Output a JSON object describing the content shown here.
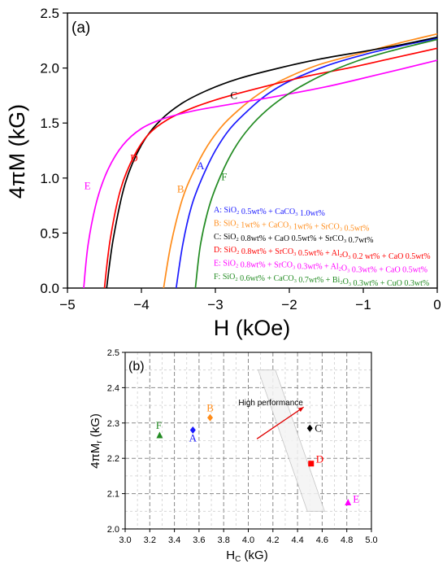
{
  "chart_data": [
    {
      "type": "line",
      "panel_label": "(a)",
      "xlabel": "H (kOe)",
      "ylabel": "4πM (kG)",
      "xlim": [
        -5,
        0
      ],
      "ylim": [
        0,
        2.5
      ],
      "xticks": [
        -5,
        -4,
        -3,
        -2,
        -1,
        0
      ],
      "yticks": [
        0.0,
        0.5,
        1.0,
        1.5,
        2.0,
        2.5
      ],
      "xtick_labels": [
        "−5",
        "−4",
        "−3",
        "−2",
        "−1",
        "0"
      ],
      "ytick_labels": [
        "0.0",
        "0.5",
        "1.0",
        "1.5",
        "2.0",
        "2.5"
      ],
      "grid": false,
      "legend_position": "bottom-right",
      "series": [
        {
          "id": "A",
          "color": "#1a1aff",
          "legend": "A: SiO₂ 0.5wt% + CaCO₃ 1.0wt%",
          "curve_label": {
            "text": "A",
            "at": [
              -3.2,
              1.08
            ]
          },
          "x": [
            -3.53,
            -3.44,
            -3.32,
            -3.18,
            -3.0,
            -2.8,
            -2.55,
            -2.3,
            -2.0,
            -1.5,
            -1.0,
            -0.5,
            0.0
          ],
          "y": [
            0.0,
            0.4,
            0.75,
            1.0,
            1.25,
            1.45,
            1.62,
            1.76,
            1.88,
            2.02,
            2.12,
            2.2,
            2.27
          ]
        },
        {
          "id": "B",
          "color": "#ff8c1a",
          "legend": "B: SiO₂ 1wt% + CaCO₃ 1wt% + SrCO₃ 0.5wt%",
          "curve_label": {
            "text": "B",
            "at": [
              -3.47,
              0.87
            ]
          },
          "x": [
            -3.7,
            -3.6,
            -3.45,
            -3.3,
            -3.1,
            -2.9,
            -2.65,
            -2.4,
            -2.1,
            -1.6,
            -1.0,
            -0.5,
            0.0
          ],
          "y": [
            0.0,
            0.4,
            0.8,
            1.05,
            1.3,
            1.48,
            1.64,
            1.77,
            1.89,
            2.03,
            2.14,
            2.23,
            2.31
          ]
        },
        {
          "id": "C",
          "color": "#000000",
          "legend": "C: SiO₂ 0.8wt% + CaO 0.5wt% + SrCO₃ 0.7wt%",
          "curve_label": {
            "text": "C",
            "at": [
              -2.75,
              1.72
            ]
          },
          "x": [
            -4.47,
            -4.38,
            -4.22,
            -4.0,
            -3.75,
            -3.45,
            -3.1,
            -2.7,
            -2.2,
            -1.6,
            -1.0,
            -0.5,
            0.0
          ],
          "y": [
            0.0,
            0.45,
            0.95,
            1.3,
            1.52,
            1.68,
            1.8,
            1.9,
            1.99,
            2.08,
            2.15,
            2.21,
            2.28
          ]
        },
        {
          "id": "D",
          "color": "#ff0000",
          "legend": "D: SiO₂ 0.8wt% + SrCO₃ 0.5wt% + Al₂O₃ 0.2 wt% + CaO 0.5wt%",
          "curve_label": {
            "text": "D",
            "at": [
              -4.1,
              1.15
            ]
          },
          "x": [
            -4.5,
            -4.42,
            -4.28,
            -4.1,
            -3.9,
            -3.65,
            -3.3,
            -2.9,
            -2.4,
            -1.8,
            -1.2,
            -0.6,
            0.0
          ],
          "y": [
            0.0,
            0.45,
            0.9,
            1.2,
            1.4,
            1.53,
            1.64,
            1.73,
            1.82,
            1.92,
            2.0,
            2.09,
            2.18
          ]
        },
        {
          "id": "E",
          "color": "#ff00ff",
          "legend": "E: SiO₂ 0.8wt% + SrCO₃ 0.3wt% + Al₂O₃ 0.3wt% + CaO 0.5wt%",
          "curve_label": {
            "text": "E",
            "at": [
              -4.73,
              0.9
            ]
          },
          "x": [
            -4.78,
            -4.72,
            -4.6,
            -4.45,
            -4.25,
            -4.0,
            -3.7,
            -3.3,
            -2.8,
            -2.2,
            -1.5,
            -0.8,
            0.0
          ],
          "y": [
            0.0,
            0.4,
            0.8,
            1.08,
            1.3,
            1.45,
            1.54,
            1.61,
            1.67,
            1.74,
            1.83,
            1.94,
            2.07
          ]
        },
        {
          "id": "F",
          "color": "#228b22",
          "legend": "F: SiO₂ 0.6wt% + CaCO₃ 0.7wt% + Bi₂O₃ 0.3wt% + CuO 0.3wt%",
          "curve_label": {
            "text": "F",
            "at": [
              -2.88,
              0.98
            ]
          },
          "x": [
            -3.27,
            -3.2,
            -3.08,
            -2.93,
            -2.75,
            -2.55,
            -2.3,
            -2.0,
            -1.6,
            -1.1,
            -0.6,
            0.0
          ],
          "y": [
            0.0,
            0.4,
            0.75,
            1.02,
            1.26,
            1.45,
            1.62,
            1.77,
            1.92,
            2.06,
            2.16,
            2.26
          ]
        }
      ]
    },
    {
      "type": "scatter",
      "panel_label": "(b)",
      "xlabel": "Hᴄ (kG)",
      "xlabel_main": "H",
      "xlabel_sub": "C",
      "xlabel_unit": " (kG)",
      "ylabel_main": "4πM",
      "ylabel_sub": "r",
      "ylabel_unit": " (kG)",
      "xlim": [
        3.0,
        5.0
      ],
      "ylim": [
        2.0,
        2.5
      ],
      "xticks": [
        3.0,
        3.2,
        3.4,
        3.6,
        3.8,
        4.0,
        4.2,
        4.4,
        4.6,
        4.8,
        5.0
      ],
      "yticks": [
        2.0,
        2.1,
        2.2,
        2.3,
        2.4,
        2.5
      ],
      "xtick_labels": [
        "3.0",
        "3.2",
        "3.4",
        "3.6",
        "3.8",
        "4.0",
        "4.2",
        "4.4",
        "4.6",
        "4.8",
        "5.0"
      ],
      "ytick_labels": [
        "2.0",
        "2.1",
        "2.2",
        "2.3",
        "2.4",
        "2.5"
      ],
      "grid": true,
      "annotation": {
        "text": "High performance",
        "arrow_from": [
          4.07,
          2.255
        ],
        "arrow_to": [
          4.45,
          2.345
        ]
      },
      "points": [
        {
          "label": "A",
          "x": 3.55,
          "y": 2.28,
          "marker": "diamond",
          "color": "#1a1aff"
        },
        {
          "label": "B",
          "x": 3.69,
          "y": 2.315,
          "marker": "diamond",
          "color": "#ff8c1a"
        },
        {
          "label": "C",
          "x": 4.5,
          "y": 2.285,
          "marker": "diamond",
          "color": "#000000"
        },
        {
          "label": "D",
          "x": 4.51,
          "y": 2.185,
          "marker": "square",
          "color": "#ff0000"
        },
        {
          "label": "E",
          "x": 4.81,
          "y": 2.075,
          "marker": "triangle",
          "color": "#ff00ff"
        },
        {
          "label": "F",
          "x": 3.28,
          "y": 2.265,
          "marker": "triangle",
          "color": "#228b22"
        }
      ]
    }
  ]
}
